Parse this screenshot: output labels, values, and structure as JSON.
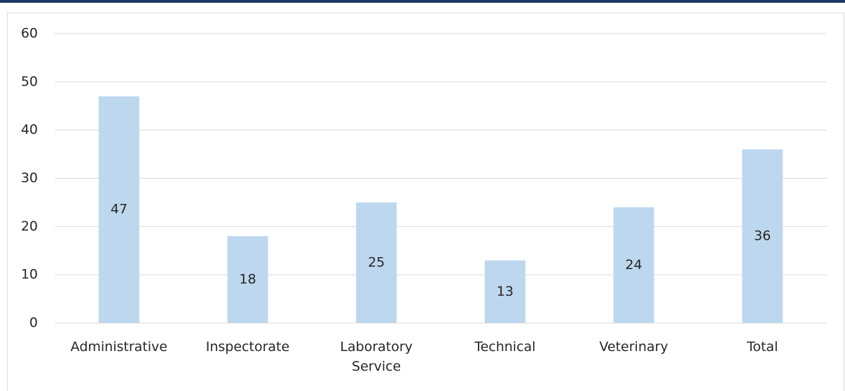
{
  "chart_data": {
    "type": "bar",
    "categories": [
      "Administrative",
      "Inspectorate",
      "Laboratory Service",
      "Technical",
      "Veterinary",
      "Total"
    ],
    "values": [
      47,
      18,
      25,
      13,
      24,
      36
    ],
    "color": "#bdd7ee",
    "ylim": [
      0,
      60
    ],
    "yticks": [
      0,
      10,
      20,
      30,
      40,
      50,
      60
    ],
    "grid": true
  }
}
